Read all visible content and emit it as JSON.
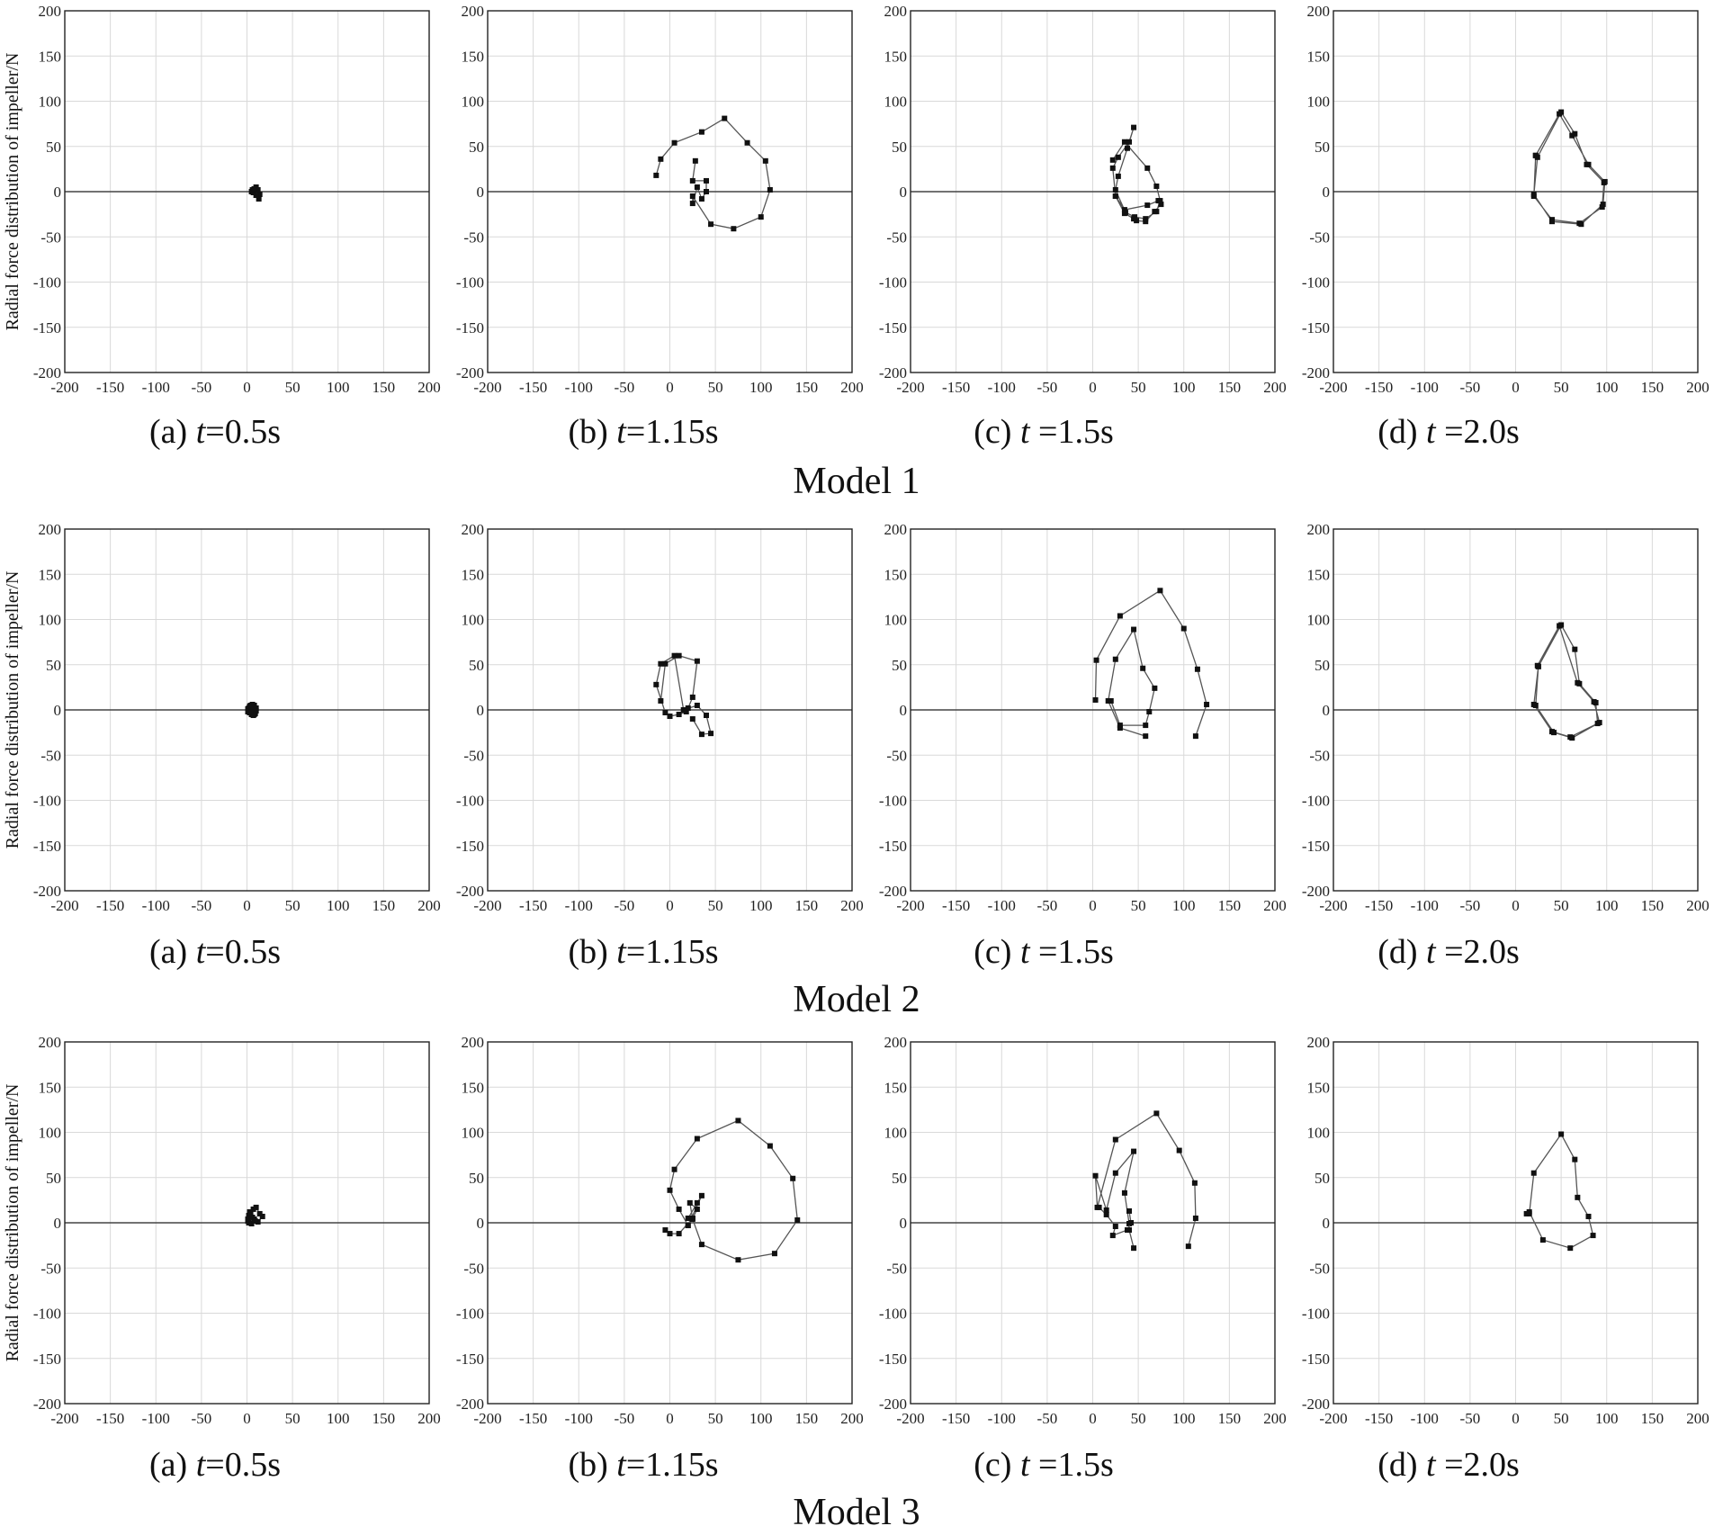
{
  "y_axis_label": "Radial force distribution of impeller/N",
  "x_ticks": [
    "-200",
    "-150",
    "-100",
    "-50",
    "0",
    "50",
    "100",
    "150",
    "200"
  ],
  "y_ticks": [
    "200",
    "150",
    "100",
    "50",
    "0",
    "-50",
    "-100",
    "-150",
    "-200"
  ],
  "chart_data": [
    {
      "type": "line",
      "model": "Model 1",
      "panel": "(a)",
      "t": "0.5s",
      "xlim": [
        -200,
        200
      ],
      "ylim": [
        -200,
        200
      ],
      "grid": true,
      "x": [
        5,
        8,
        10,
        12,
        14,
        13,
        10,
        7,
        6,
        8
      ],
      "y": [
        0,
        3,
        5,
        2,
        -3,
        -8,
        -4,
        -1,
        2,
        3
      ]
    },
    {
      "type": "line",
      "model": "Model 1",
      "panel": "(b)",
      "t": "1.15s",
      "xlim": [
        -200,
        200
      ],
      "ylim": [
        -200,
        200
      ],
      "grid": true,
      "x": [
        -15,
        -10,
        5,
        35,
        60,
        85,
        105,
        110,
        100,
        70,
        45,
        25,
        25,
        30,
        35,
        40,
        40,
        25,
        28
      ],
      "y": [
        18,
        36,
        54,
        66,
        81,
        54,
        34,
        2,
        -28,
        -41,
        -36,
        -5,
        -13,
        5,
        -8,
        0,
        12,
        12,
        34
      ]
    },
    {
      "type": "line",
      "model": "Model 1",
      "panel": "(c)",
      "t": "1.5s",
      "xlim": [
        -200,
        200
      ],
      "ylim": [
        -200,
        200
      ],
      "grid": true,
      "x": [
        25,
        35,
        45,
        48,
        58,
        68,
        75,
        72,
        60,
        35,
        25,
        22,
        28,
        40,
        45,
        38,
        28,
        25,
        36,
        46,
        58,
        70,
        74,
        70,
        60,
        35,
        22
      ],
      "y": [
        -5,
        -24,
        -30,
        -32,
        -33,
        -22,
        -14,
        -10,
        -15,
        -20,
        -5,
        26,
        38,
        55,
        71,
        48,
        17,
        2,
        -23,
        -28,
        -30,
        -22,
        -10,
        6,
        26,
        55,
        35
      ]
    },
    {
      "type": "line",
      "model": "Model 1",
      "panel": "(d)",
      "t": "2.0s",
      "xlim": [
        -200,
        200
      ],
      "ylim": [
        -200,
        200
      ],
      "grid": true,
      "x": [
        22,
        20,
        40,
        70,
        95,
        97,
        78,
        65,
        50,
        24,
        20,
        40,
        72,
        96,
        98,
        80,
        62,
        48,
        22
      ],
      "y": [
        40,
        -5,
        -31,
        -35,
        -17,
        10,
        30,
        64,
        88,
        38,
        -3,
        -33,
        -36,
        -14,
        11,
        30,
        62,
        86,
        40
      ]
    },
    {
      "type": "line",
      "model": "Model 2",
      "panel": "(a)",
      "t": "0.5s",
      "xlim": [
        -200,
        200
      ],
      "ylim": [
        -200,
        200
      ],
      "grid": true,
      "x": [
        1,
        2,
        4,
        6,
        8,
        10,
        10,
        9,
        7,
        5,
        3,
        2,
        1,
        3,
        5,
        7,
        9,
        8,
        6,
        4
      ],
      "y": [
        -2,
        2,
        5,
        6,
        5,
        2,
        -1,
        -4,
        -6,
        -5,
        -3,
        0,
        1,
        4,
        3,
        0,
        -3,
        -5,
        -4,
        -2
      ]
    },
    {
      "type": "line",
      "model": "Model 2",
      "panel": "(b)",
      "t": "1.15s",
      "xlim": [
        -200,
        200
      ],
      "ylim": [
        -200,
        200
      ],
      "grid": true,
      "x": [
        -10,
        -5,
        10,
        30,
        25,
        20,
        18,
        10,
        0,
        -5,
        -15,
        -10,
        5,
        15,
        30,
        40,
        45,
        35,
        25
      ],
      "y": [
        10,
        51,
        60,
        54,
        14,
        2,
        -2,
        -5,
        -7,
        -3,
        28,
        51,
        60,
        0,
        5,
        -6,
        -26,
        -27,
        -10
      ]
    },
    {
      "type": "line",
      "model": "Model 2",
      "panel": "(c)",
      "t": "1.5s",
      "xlim": [
        -200,
        200
      ],
      "ylim": [
        -200,
        200
      ],
      "grid": true,
      "x": [
        3,
        4,
        30,
        74,
        100,
        115,
        125,
        113
      ],
      "y": [
        11,
        55,
        104,
        132,
        90,
        45,
        6,
        -29
      ],
      "x2": [
        58,
        30,
        17,
        25,
        45,
        55,
        68,
        62,
        58,
        30,
        20
      ],
      "y2": [
        -29,
        -20,
        10,
        56,
        89,
        46,
        24,
        -2,
        -17,
        -17,
        10
      ]
    },
    {
      "type": "line",
      "model": "Model 2",
      "panel": "(d)",
      "t": "2.0s",
      "xlim": [
        -200,
        200
      ],
      "ylim": [
        -200,
        200
      ],
      "grid": true,
      "x": [
        25,
        20,
        40,
        60,
        90,
        88,
        70,
        65,
        50,
        25,
        22,
        42,
        62,
        92,
        86,
        68,
        48,
        24
      ],
      "y": [
        48,
        6,
        -24,
        -30,
        -15,
        8,
        29,
        67,
        94,
        48,
        5,
        -25,
        -31,
        -14,
        9,
        30,
        93,
        49
      ]
    },
    {
      "type": "line",
      "model": "Model 3",
      "panel": "(a)",
      "t": "0.5s",
      "xlim": [
        -200,
        200
      ],
      "ylim": [
        -200,
        200
      ],
      "grid": true,
      "x": [
        1,
        2,
        4,
        7,
        10,
        14,
        17,
        12,
        8,
        5,
        2,
        1,
        3,
        6,
        9
      ],
      "y": [
        2,
        8,
        10,
        15,
        17,
        10,
        7,
        1,
        4,
        -1,
        0,
        4,
        12,
        6,
        2
      ]
    },
    {
      "type": "line",
      "model": "Model 3",
      "panel": "(b)",
      "t": "1.15s",
      "xlim": [
        -200,
        200
      ],
      "ylim": [
        -200,
        200
      ],
      "grid": true,
      "x": [
        -5,
        0,
        10,
        25,
        20,
        30,
        35,
        20,
        10,
        0,
        5,
        30,
        75,
        110,
        135,
        140,
        115,
        75,
        35,
        25,
        22,
        30,
        25,
        20
      ],
      "y": [
        -8,
        -12,
        -12,
        5,
        5,
        22,
        30,
        -3,
        15,
        36,
        59,
        93,
        113,
        85,
        49,
        3,
        -34,
        -41,
        -24,
        4,
        22,
        15,
        5,
        -3
      ]
    },
    {
      "type": "line",
      "model": "Model 3",
      "panel": "(c)",
      "t": "1.5s",
      "xlim": [
        -200,
        200
      ],
      "ylim": [
        -200,
        200
      ],
      "grid": true,
      "x": [
        45,
        40,
        40,
        35,
        45,
        25,
        15,
        3,
        5,
        25,
        70,
        95,
        112,
        113,
        105
      ],
      "y": [
        -28,
        -8,
        -1,
        33,
        79,
        55,
        14,
        52,
        17,
        92,
        121,
        80,
        44,
        5,
        -26
      ],
      "x2": [
        40,
        42,
        38,
        22,
        25,
        15,
        7
      ],
      "y2": [
        13,
        0,
        -8,
        -14,
        -4,
        9,
        17
      ]
    },
    {
      "type": "line",
      "model": "Model 3",
      "panel": "(d)",
      "t": "2.0s",
      "xlim": [
        -200,
        200
      ],
      "ylim": [
        -200,
        200
      ],
      "grid": true,
      "x": [
        15,
        20,
        50,
        65,
        68,
        80,
        85,
        60,
        30,
        15,
        12
      ],
      "y": [
        10,
        55,
        98,
        70,
        28,
        7,
        -14,
        -28,
        -19,
        12,
        10
      ]
    }
  ]
}
